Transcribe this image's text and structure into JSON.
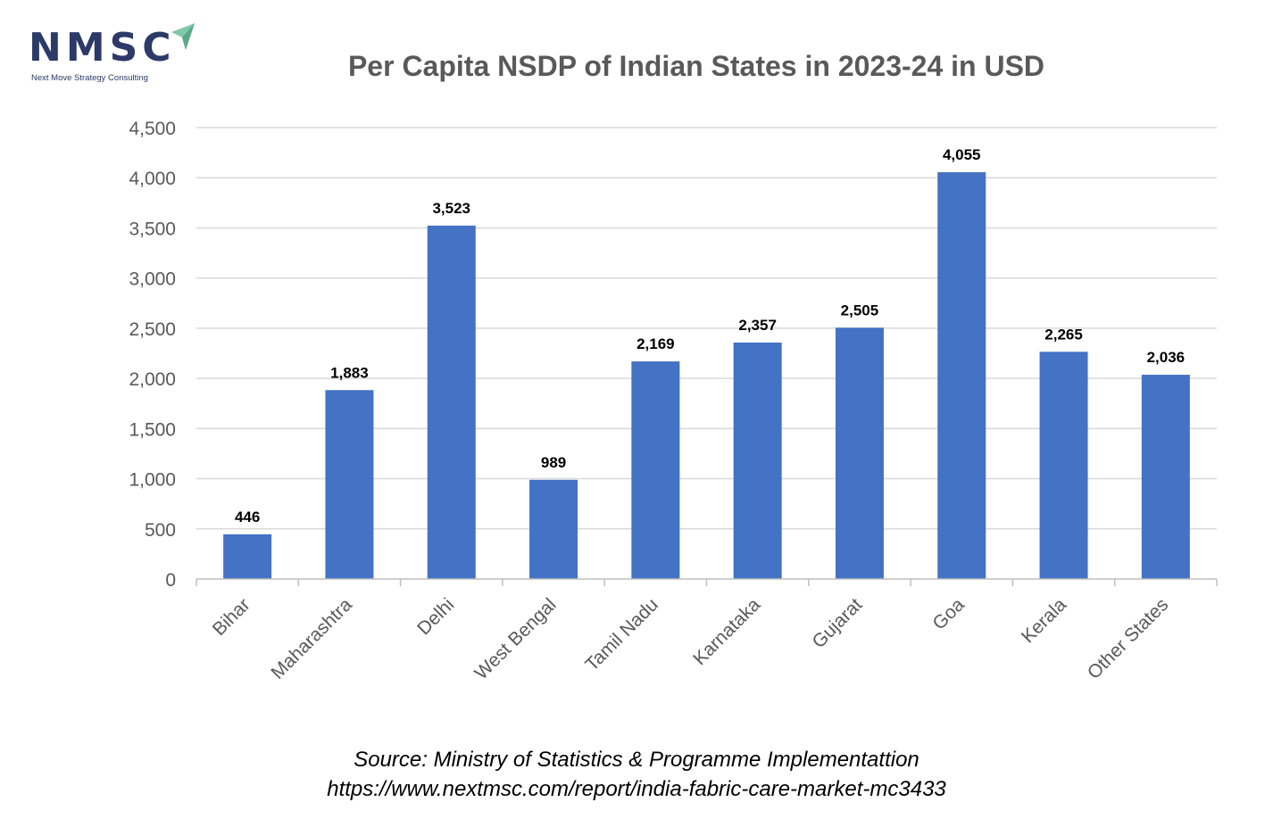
{
  "logo": {
    "name": "NMSC",
    "tagline": "Next Move Strategy Consulting",
    "brand_color": "#2b3a67",
    "accent_color": "#7fc8a9"
  },
  "chart_data": {
    "type": "bar",
    "title": "Per Capita NSDP of Indian States in 2023-24 in USD",
    "xlabel": "",
    "ylabel": "",
    "categories": [
      "Bihar",
      "Maharashtra",
      "Delhi",
      "West Bengal",
      "Tamil Nadu",
      "Karnataka",
      "Gujarat",
      "Goa",
      "Kerala",
      "Other States"
    ],
    "values": [
      446,
      1883,
      3523,
      989,
      2169,
      2357,
      2505,
      4055,
      2265,
      2036
    ],
    "value_labels": [
      "446",
      "1,883",
      "3,523",
      "989",
      "2,169",
      "2,357",
      "2,505",
      "4,055",
      "2,265",
      "2,036"
    ],
    "ylim": [
      0,
      4500
    ],
    "y_ticks": [
      0,
      500,
      1000,
      1500,
      2000,
      2500,
      3000,
      3500,
      4000,
      4500
    ],
    "y_tick_labels": [
      "0",
      "500",
      "1,000",
      "1,500",
      "2,000",
      "2,500",
      "3,000",
      "3,500",
      "4,000",
      "4,500"
    ],
    "grid": true,
    "bar_color": "#4472c4",
    "grid_color": "#d9d9d9"
  },
  "source": {
    "line1": "Source: Ministry of Statistics & Programme Implementattion",
    "line2": "https://www.nextmsc.com/report/india-fabric-care-market-mc3433"
  }
}
